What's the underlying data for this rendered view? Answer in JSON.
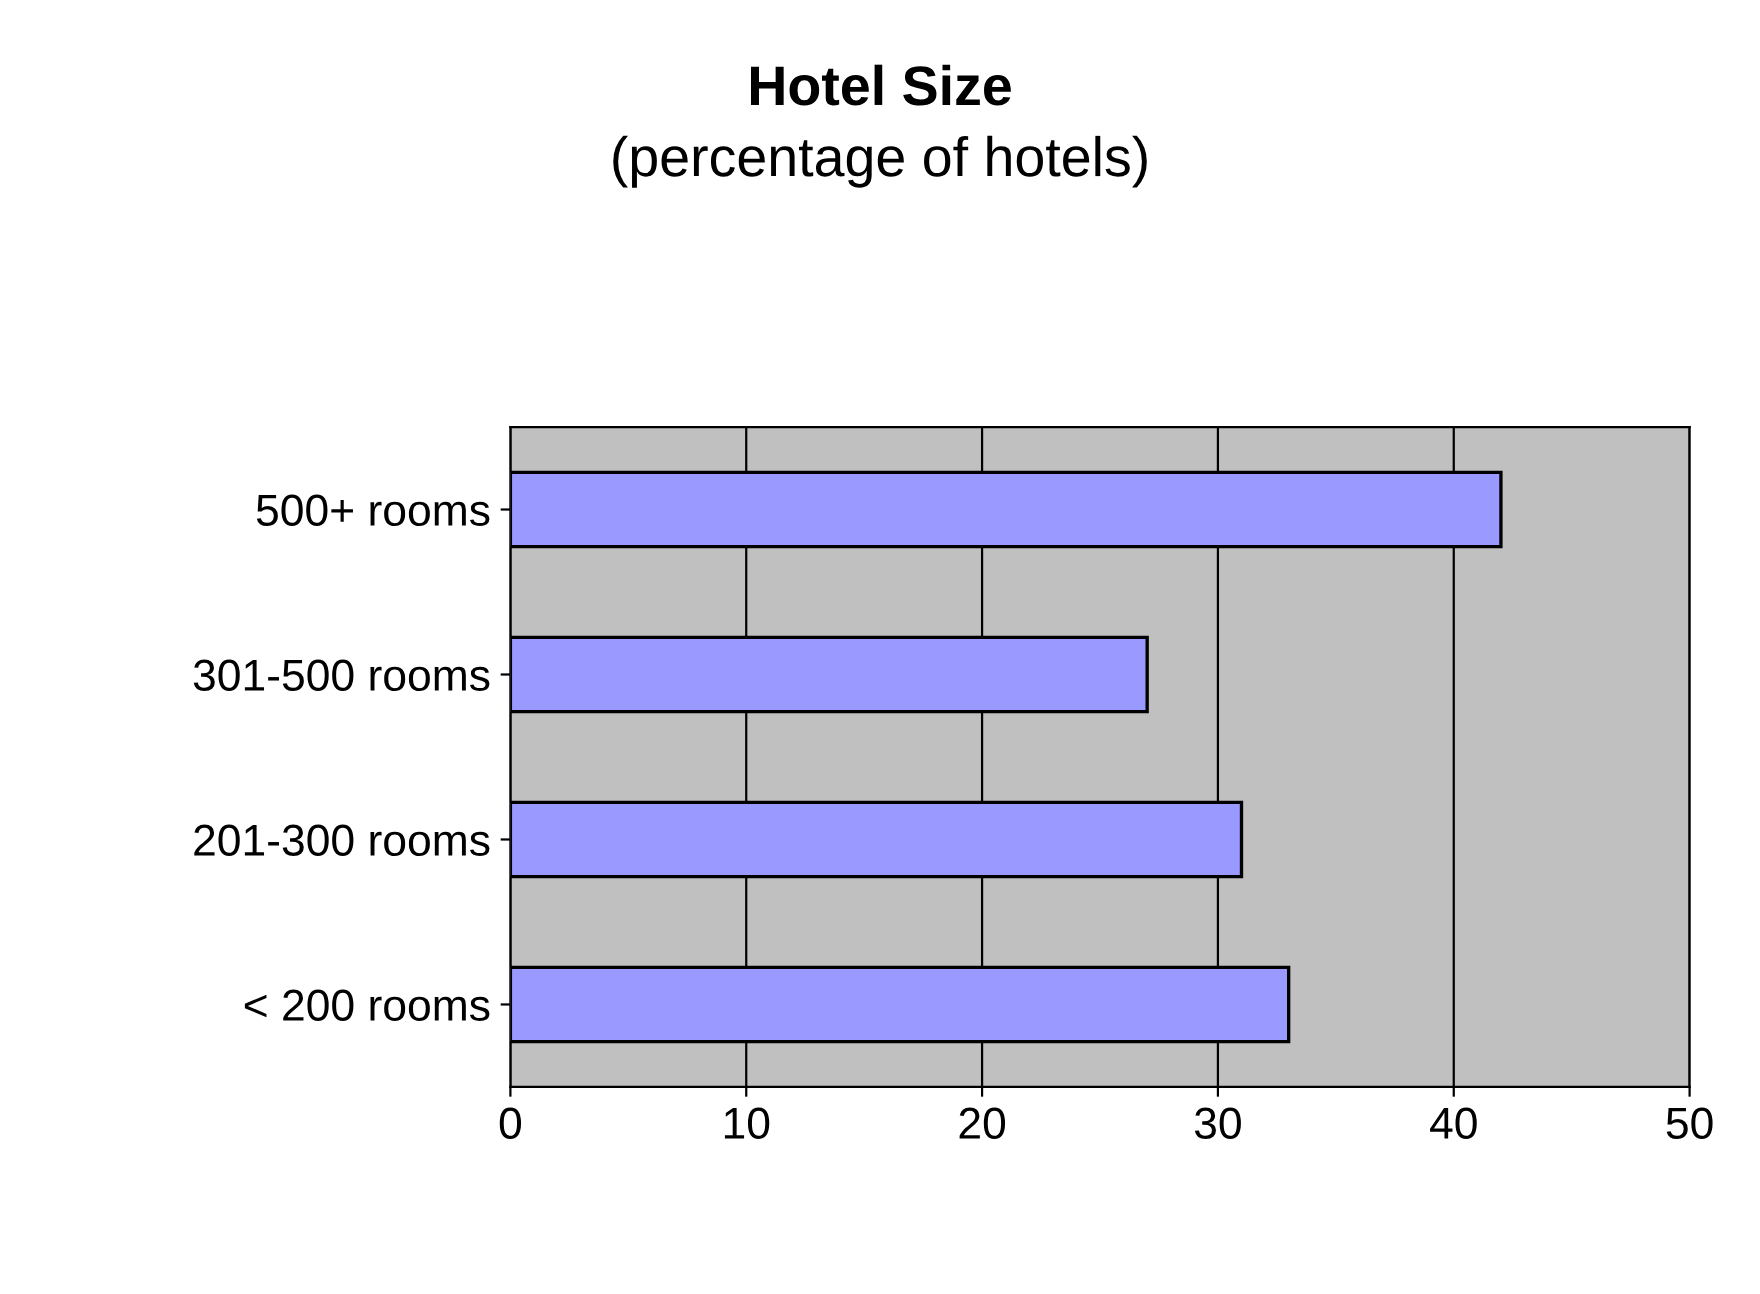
{
  "chart_data": {
    "type": "bar",
    "orientation": "horizontal",
    "title": "Hotel Size",
    "subtitle": "(percentage of hotels)",
    "categories": [
      "500+ rooms",
      "301-500 rooms",
      "201-300 rooms",
      "< 200 rooms"
    ],
    "values": [
      42,
      27,
      31,
      33
    ],
    "color": "#9999ff",
    "xlim": [
      0,
      50
    ],
    "xticks": [
      0,
      10,
      20,
      30,
      40,
      50
    ],
    "grid": "x",
    "legend": false
  }
}
